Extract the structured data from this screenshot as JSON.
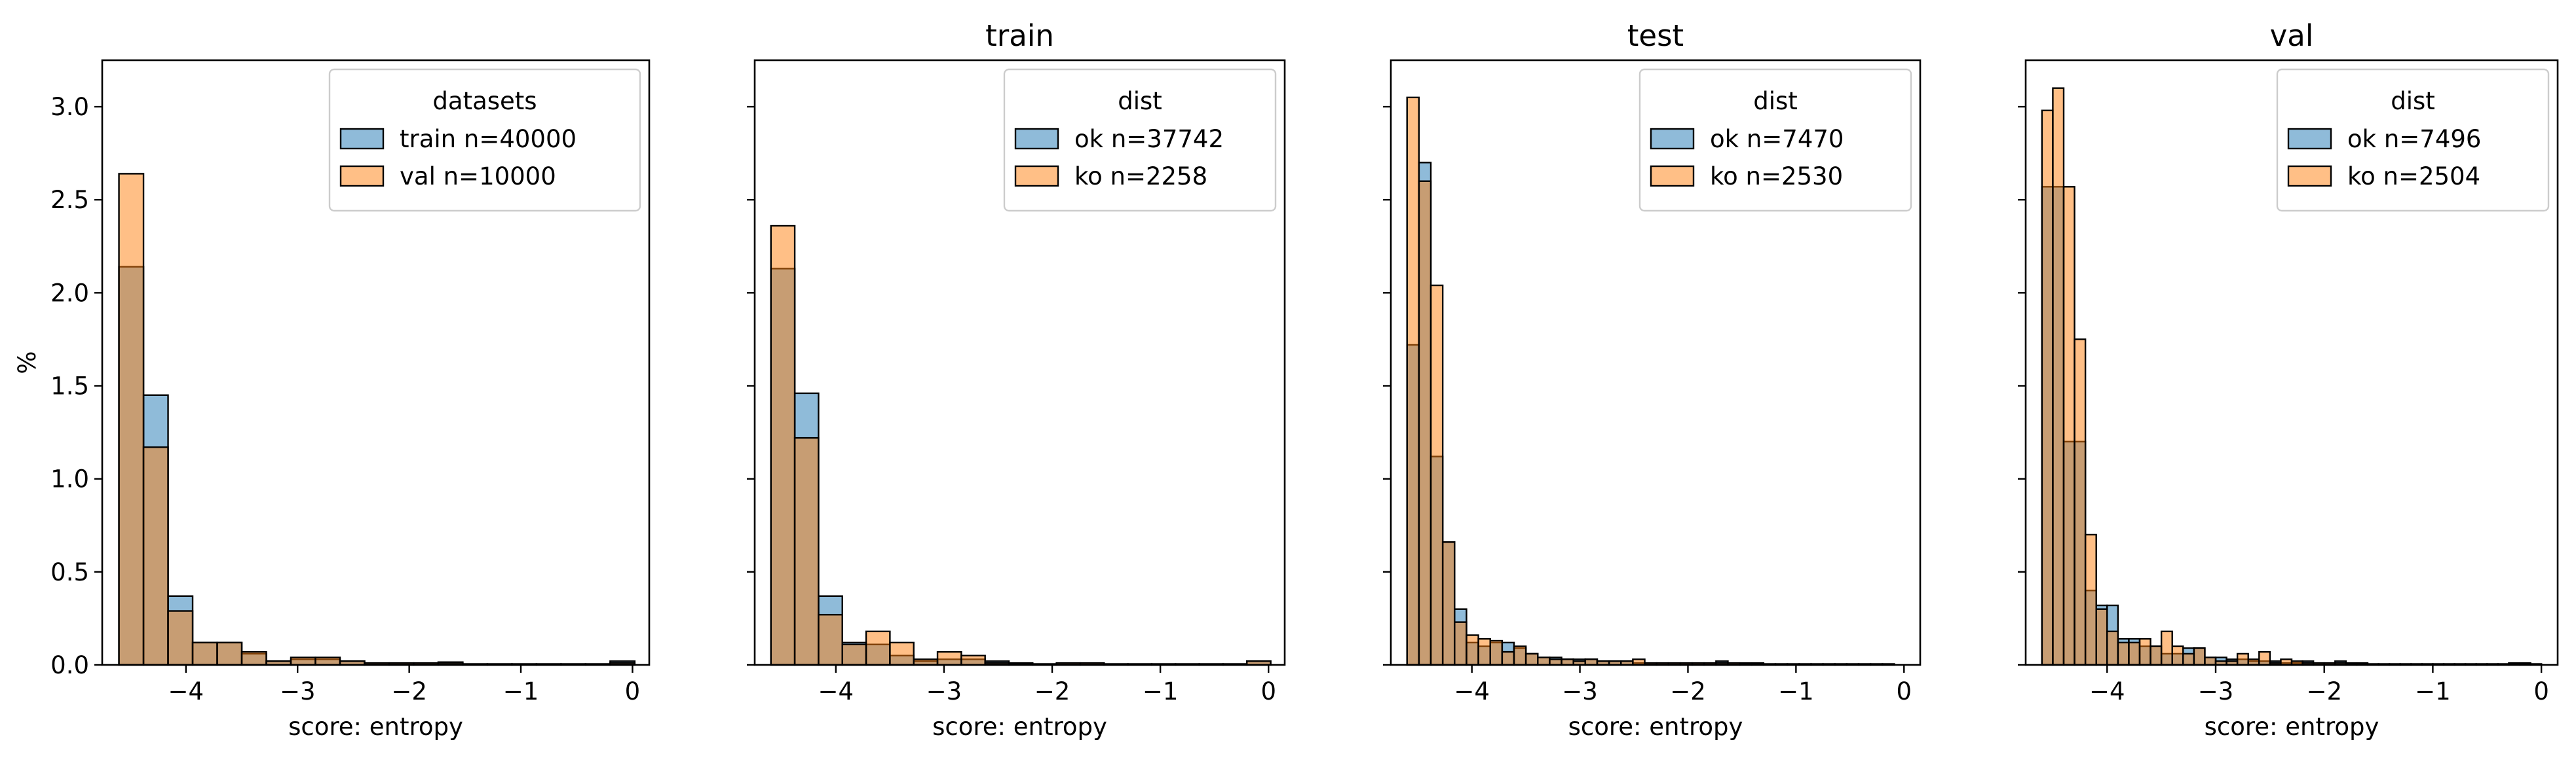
{
  "chart_data": [
    {
      "type": "histogram",
      "title": "",
      "xlabel": "score: entropy",
      "ylabel": "%",
      "xlim": [
        -4.75,
        0.15
      ],
      "ylim": [
        0,
        3.25
      ],
      "xticks": [
        -4,
        -3,
        -2,
        -1,
        0
      ],
      "xtick_labels": [
        "−4",
        "−3",
        "−2",
        "−1",
        "0"
      ],
      "yticks": [
        0.0,
        0.5,
        1.0,
        1.5,
        2.0,
        2.5,
        3.0
      ],
      "ytick_labels": [
        "0.0",
        "0.5",
        "1.0",
        "1.5",
        "2.0",
        "2.5",
        "3.0"
      ],
      "show_yticklabels": true,
      "legend": {
        "title": "datasets",
        "position": "upper right"
      },
      "bin_edges": [
        -4.6,
        -4.38,
        -4.16,
        -3.94,
        -3.72,
        -3.5,
        -3.28,
        -3.06,
        -2.84,
        -2.62,
        -2.4,
        -2.18,
        -1.96,
        -1.74,
        -1.52,
        -1.3,
        -1.08,
        -0.86,
        -0.64,
        -0.42,
        -0.2,
        0.02
      ],
      "series": [
        {
          "name": "train n=40000",
          "color": "#1f77b4",
          "values": [
            2.14,
            1.45,
            0.37,
            0.12,
            0.12,
            0.06,
            0.02,
            0.03,
            0.03,
            0.02,
            0.01,
            0.01,
            0.01,
            0.015,
            0.005,
            0.005,
            0.005,
            0.005,
            0.005,
            0.005,
            0.02
          ]
        },
        {
          "name": "val n=10000",
          "color": "#ff7f0e",
          "values": [
            2.64,
            1.17,
            0.29,
            0.12,
            0.12,
            0.07,
            0.02,
            0.04,
            0.04,
            0.02,
            0.01,
            0.01,
            0.01,
            0.01,
            0.005,
            0.005,
            0.005,
            0.005,
            0.005,
            0.005,
            0.01
          ]
        }
      ]
    },
    {
      "type": "histogram",
      "title": "train",
      "xlabel": "score: entropy",
      "ylabel": "",
      "xlim": [
        -4.75,
        0.15
      ],
      "ylim": [
        0,
        3.25
      ],
      "xticks": [
        -4,
        -3,
        -2,
        -1,
        0
      ],
      "xtick_labels": [
        "−4",
        "−3",
        "−2",
        "−1",
        "0"
      ],
      "yticks": [
        0.0,
        0.5,
        1.0,
        1.5,
        2.0,
        2.5,
        3.0
      ],
      "ytick_labels": [
        "0.0",
        "0.5",
        "1.0",
        "1.5",
        "2.0",
        "2.5",
        "3.0"
      ],
      "show_yticklabels": false,
      "legend": {
        "title": "dist",
        "position": "upper right"
      },
      "bin_edges": [
        -4.6,
        -4.38,
        -4.16,
        -3.94,
        -3.72,
        -3.5,
        -3.28,
        -3.06,
        -2.84,
        -2.62,
        -2.4,
        -2.18,
        -1.96,
        -1.74,
        -1.52,
        -1.3,
        -1.08,
        -0.86,
        -0.64,
        -0.42,
        -0.2,
        0.02
      ],
      "series": [
        {
          "name": "ok n=37742",
          "color": "#1f77b4",
          "values": [
            2.13,
            1.46,
            0.37,
            0.12,
            0.11,
            0.05,
            0.02,
            0.03,
            0.03,
            0.02,
            0.01,
            0.005,
            0.01,
            0.01,
            0.005,
            0.005,
            0.005,
            0.005,
            0.005,
            0.005,
            0.02
          ]
        },
        {
          "name": "ko n=2258",
          "color": "#ff7f0e",
          "values": [
            2.36,
            1.22,
            0.27,
            0.11,
            0.18,
            0.12,
            0.03,
            0.07,
            0.05,
            0.01,
            0.005,
            0.005,
            0.01,
            0.01,
            0.005,
            0.005,
            0.005,
            0.005,
            0.005,
            0.005,
            0.02
          ]
        }
      ]
    },
    {
      "type": "histogram",
      "title": "test",
      "xlabel": "score: entropy",
      "ylabel": "",
      "xlim": [
        -4.75,
        0.15
      ],
      "ylim": [
        0,
        3.25
      ],
      "xticks": [
        -4,
        -3,
        -2,
        -1,
        0
      ],
      "xtick_labels": [
        "−4",
        "−3",
        "−2",
        "−1",
        "0"
      ],
      "yticks": [
        0.0,
        0.5,
        1.0,
        1.5,
        2.0,
        2.5,
        3.0
      ],
      "ytick_labels": [
        "0.0",
        "0.5",
        "1.0",
        "1.5",
        "2.0",
        "2.5",
        "3.0"
      ],
      "show_yticklabels": false,
      "legend": {
        "title": "dist",
        "position": "upper right"
      },
      "bin_edges": [
        -4.6,
        -4.49,
        -4.38,
        -4.27,
        -4.16,
        -4.05,
        -3.94,
        -3.83,
        -3.72,
        -3.61,
        -3.5,
        -3.39,
        -3.28,
        -3.17,
        -3.06,
        -2.95,
        -2.84,
        -2.73,
        -2.62,
        -2.51,
        -2.4,
        -2.29,
        -2.18,
        -2.07,
        -1.96,
        -1.85,
        -1.74,
        -1.63,
        -1.52,
        -1.41,
        -1.3,
        -1.19,
        -1.08,
        -0.97,
        -0.86,
        -0.75,
        -0.64,
        -0.53,
        -0.42,
        -0.31,
        -0.2,
        -0.09
      ],
      "series": [
        {
          "name": "ok n=7470",
          "color": "#1f77b4",
          "values": [
            1.72,
            2.7,
            1.12,
            0.66,
            0.3,
            0.12,
            0.1,
            0.12,
            0.12,
            0.09,
            0.06,
            0.04,
            0.04,
            0.03,
            0.03,
            0.03,
            0.02,
            0.02,
            0.02,
            0.01,
            0.01,
            0.01,
            0.01,
            0.01,
            0.01,
            0.01,
            0.02,
            0.01,
            0.01,
            0.01,
            0.005,
            0.005,
            0.005,
            0.005,
            0.005,
            0.005,
            0.005,
            0.005,
            0.005,
            0.005,
            0.005
          ]
        },
        {
          "name": "ko n=2530",
          "color": "#ff7f0e",
          "values": [
            3.05,
            2.6,
            2.04,
            0.66,
            0.23,
            0.16,
            0.14,
            0.13,
            0.07,
            0.1,
            0.06,
            0.04,
            0.03,
            0.03,
            0.02,
            0.03,
            0.02,
            0.02,
            0.02,
            0.03,
            0.01,
            0.01,
            0.01,
            0.01,
            0.01,
            0.01,
            0.01,
            0.01,
            0.005,
            0.005,
            0.005,
            0.005,
            0.005,
            0.005,
            0.005,
            0.005,
            0.005,
            0.005,
            0.005,
            0.005,
            0.005
          ]
        }
      ]
    },
    {
      "type": "histogram",
      "title": "val",
      "xlabel": "score: entropy",
      "ylabel": "",
      "xlim": [
        -4.75,
        0.15
      ],
      "ylim": [
        0,
        3.25
      ],
      "xticks": [
        -4,
        -3,
        -2,
        -1,
        0
      ],
      "xtick_labels": [
        "−4",
        "−3",
        "−2",
        "−1",
        "0"
      ],
      "yticks": [
        0.0,
        0.5,
        1.0,
        1.5,
        2.0,
        2.5,
        3.0
      ],
      "ytick_labels": [
        "0.0",
        "0.5",
        "1.0",
        "1.5",
        "2.0",
        "2.5",
        "3.0"
      ],
      "show_yticklabels": false,
      "legend": {
        "title": "dist",
        "position": "upper right"
      },
      "bin_edges": [
        -4.6,
        -4.5,
        -4.4,
        -4.3,
        -4.2,
        -4.1,
        -4.0,
        -3.9,
        -3.8,
        -3.7,
        -3.6,
        -3.5,
        -3.4,
        -3.3,
        -3.2,
        -3.1,
        -3.0,
        -2.9,
        -2.8,
        -2.7,
        -2.6,
        -2.5,
        -2.4,
        -2.3,
        -2.2,
        -2.1,
        -2.0,
        -1.9,
        -1.8,
        -1.7,
        -1.6,
        -1.5,
        -1.4,
        -1.3,
        -1.2,
        -1.1,
        -1.0,
        -0.9,
        -0.8,
        -0.7,
        -0.6,
        -0.5,
        -0.4,
        -0.3,
        -0.2,
        -0.1,
        0.0
      ],
      "series": [
        {
          "name": "ok n=7496",
          "color": "#1f77b4",
          "values": [
            2.57,
            2.57,
            1.2,
            1.2,
            0.4,
            0.32,
            0.32,
            0.14,
            0.14,
            0.1,
            0.1,
            0.06,
            0.06,
            0.09,
            0.09,
            0.04,
            0.04,
            0.03,
            0.03,
            0.02,
            0.02,
            0.02,
            0.01,
            0.01,
            0.02,
            0.01,
            0.01,
            0.02,
            0.01,
            0.01,
            0.005,
            0.005,
            0.005,
            0.005,
            0.005,
            0.005,
            0.005,
            0.005,
            0.005,
            0.005,
            0.005,
            0.005,
            0.005,
            0.01,
            0.01,
            0.005
          ]
        },
        {
          "name": "ko n=2504",
          "color": "#ff7f0e",
          "values": [
            2.98,
            3.1,
            2.57,
            1.75,
            0.7,
            0.3,
            0.18,
            0.12,
            0.12,
            0.14,
            0.1,
            0.18,
            0.1,
            0.06,
            0.09,
            0.04,
            0.02,
            0.02,
            0.06,
            0.03,
            0.07,
            0.01,
            0.03,
            0.02,
            0.01,
            0.01,
            0.01,
            0.01,
            0.005,
            0.005,
            0.005,
            0.005,
            0.005,
            0.005,
            0.005,
            0.005,
            0.005,
            0.005,
            0.005,
            0.005,
            0.005,
            0.005,
            0.005,
            0.005,
            0.005,
            0.005
          ]
        }
      ]
    }
  ]
}
